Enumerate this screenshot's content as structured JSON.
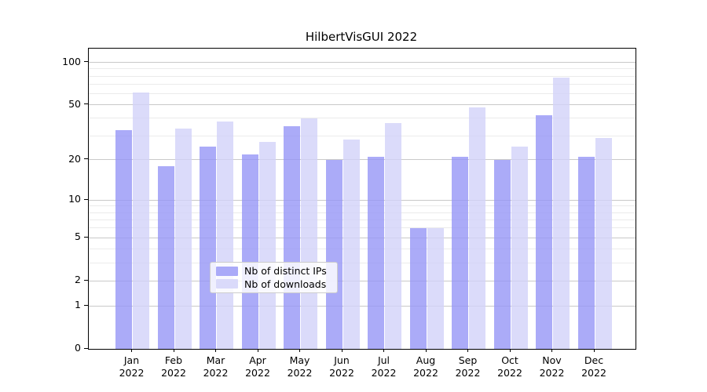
{
  "chart_data": {
    "type": "bar",
    "title": "HilbertVisGUI 2022",
    "categories": [
      "Jan",
      "Feb",
      "Mar",
      "Apr",
      "May",
      "Jun",
      "Jul",
      "Aug",
      "Sep",
      "Oct",
      "Nov",
      "Dec"
    ],
    "x_second_line": "2022",
    "series": [
      {
        "key": "ips",
        "name": "Nb of distinct IPs",
        "values": [
          33,
          18,
          25,
          22,
          35,
          20,
          21,
          6,
          21,
          20,
          42,
          21
        ]
      },
      {
        "key": "downloads",
        "name": "Nb of downloads",
        "values": [
          61,
          34,
          38,
          27,
          40,
          28,
          37,
          6,
          48,
          25,
          78,
          29
        ]
      }
    ],
    "y_axis": {
      "scale": "log1p",
      "tick_labels": [
        "100",
        "50",
        "20",
        "10",
        "5",
        "2",
        "1",
        "0"
      ],
      "major_ticks": [
        100,
        50,
        20,
        10,
        5,
        2,
        1,
        0
      ],
      "minor_gridlines": [
        3,
        4,
        6,
        7,
        8,
        9,
        30,
        40,
        60,
        70,
        80,
        90
      ],
      "ylim": [
        0,
        115
      ],
      "grid": "on"
    },
    "legend_position": "lower center"
  },
  "colors": {
    "ips_bar": "rgba(150,150,246,0.8)",
    "downloads_bar": "rgba(210,210,249,0.8)",
    "ips_solid": "#aaaaf8",
    "downloads_solid": "#dadafa",
    "grid_major": "#c9c9c9",
    "grid_minor": "#ebebeb",
    "axis": "#000000"
  }
}
